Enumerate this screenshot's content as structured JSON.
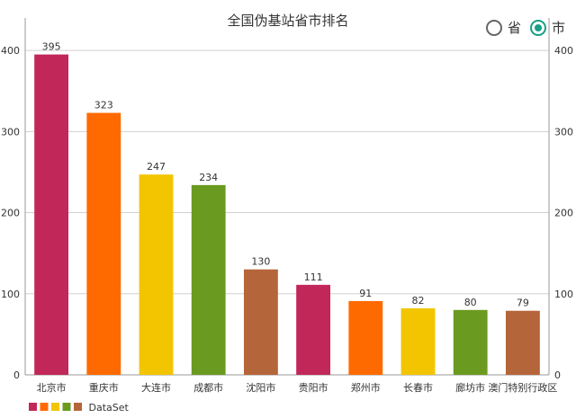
{
  "chart_data": {
    "type": "bar",
    "title": "全国伪基站省市排名",
    "categories": [
      "北京市",
      "重庆市",
      "大连市",
      "成都市",
      "沈阳市",
      "贵阳市",
      "郑州市",
      "长春市",
      "廊坊市",
      "澳门特别行政区"
    ],
    "series": [
      {
        "name": "DataSet",
        "values": [
          395,
          323,
          247,
          234,
          130,
          111,
          91,
          82,
          80,
          79
        ]
      }
    ],
    "bar_colors": [
      "#c2275a",
      "#ff6a00",
      "#f2c500",
      "#6a9a1f",
      "#b5653a",
      "#c2275a",
      "#ff6a00",
      "#f2c500",
      "#6a9a1f",
      "#b5653a"
    ],
    "legend_colors": [
      "#c2275a",
      "#ff6a00",
      "#f2c500",
      "#6a9a1f",
      "#b5653a"
    ],
    "yticks": [
      0,
      100,
      200,
      300,
      400
    ],
    "ylim": [
      0,
      440
    ],
    "legend_position": "bottom-left",
    "grid": true
  },
  "toggle": {
    "options": [
      {
        "label": "省",
        "checked": false
      },
      {
        "label": "市",
        "checked": true
      }
    ]
  }
}
